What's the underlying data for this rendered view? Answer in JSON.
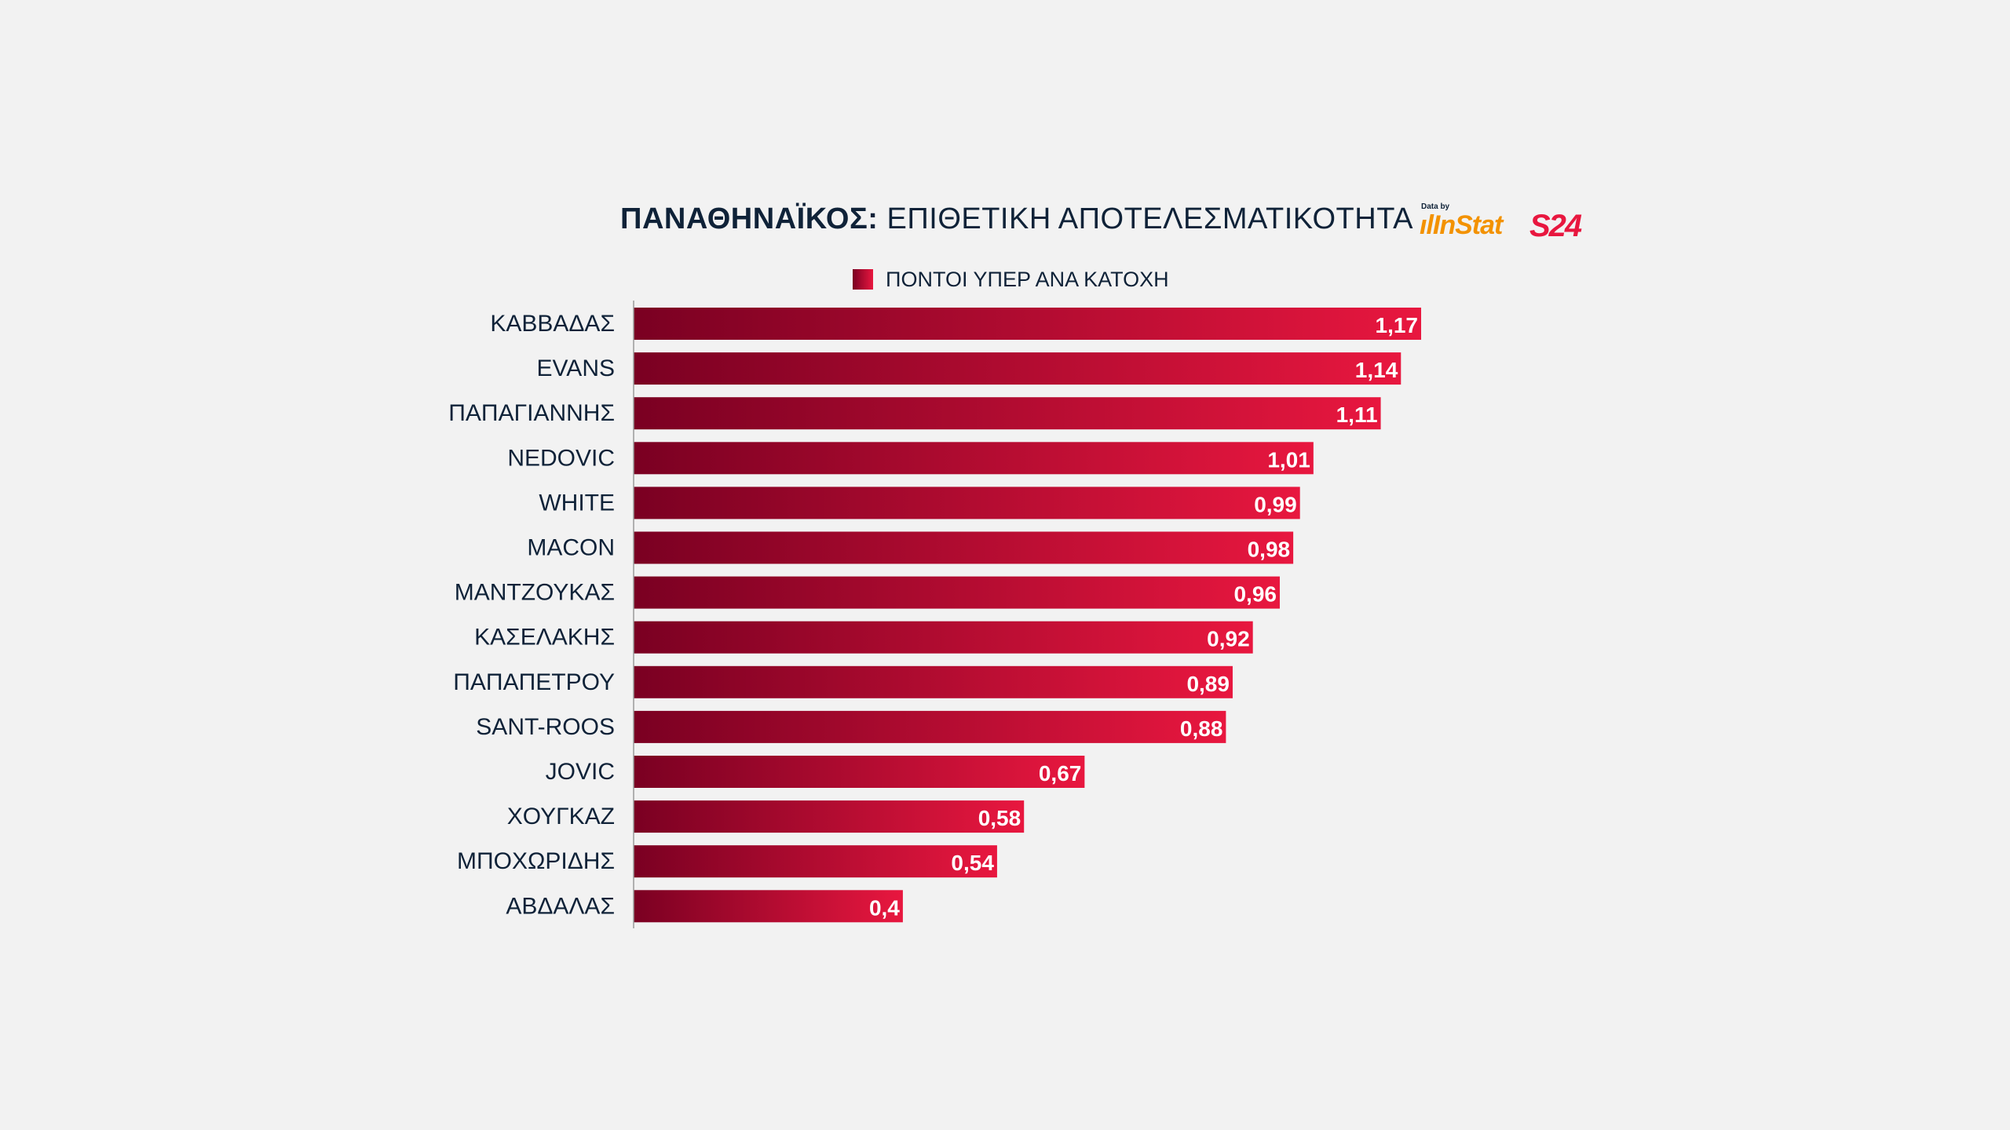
{
  "title_bold": "ΠΑΝΑΘΗΝΑΪΚΟΣ:",
  "title_light": "ΕΠΙΘΕΤΙΚΗ ΑΠΟΤΕΛΕΣΜΑΤΙΚΟΤΗΤΑ",
  "logos": {
    "caption": "Data by",
    "instat": "InStat",
    "s24": "S24"
  },
  "colors": {
    "bar_start": "#7a0022",
    "bar_end": "#e8173f",
    "text": "#0f2238",
    "background": "#f2f2f2"
  },
  "chart_data": {
    "type": "bar",
    "orientation": "horizontal",
    "title": "ΠΑΝΑΘΗΝΑΪΚΟΣ: ΕΠΙΘΕΤΙΚΗ ΑΠΟΤΕΛΕΣΜΑΤΙΚΟΤΗΤΑ",
    "legend_position": "top-center",
    "grid": false,
    "xlim": [
      0,
      1.3
    ],
    "categories": [
      "ΚΑΒΒΑΔΑΣ",
      "EVANS",
      "ΠΑΠΑΓΙΑΝΝΗΣ",
      "NEDOVIC",
      "WHITE",
      "MACON",
      "ΜΑΝΤΖΟΥΚΑΣ",
      "ΚΑΣΕΛΑΚΗΣ",
      "ΠΑΠΑΠΕΤΡΟΥ",
      "SANT-ROOS",
      "JOVIC",
      "ΧΟΥΓΚΑΖ",
      "ΜΠΟΧΩΡΙΔΗΣ",
      "ΑΒΔΑΛΑΣ"
    ],
    "series": [
      {
        "name": "ΠΟΝΤΟΙ ΥΠΕΡ ΑΝΑ ΚΑΤΟΧΗ",
        "values": [
          1.17,
          1.14,
          1.11,
          1.01,
          0.99,
          0.98,
          0.96,
          0.92,
          0.89,
          0.88,
          0.67,
          0.58,
          0.54,
          0.4
        ],
        "labels": [
          "1,17",
          "1,14",
          "1,11",
          "1,01",
          "0,99",
          "0,98",
          "0,96",
          "0,92",
          "0,89",
          "0,88",
          "0,67",
          "0,58",
          "0,54",
          "0,4"
        ]
      }
    ]
  }
}
